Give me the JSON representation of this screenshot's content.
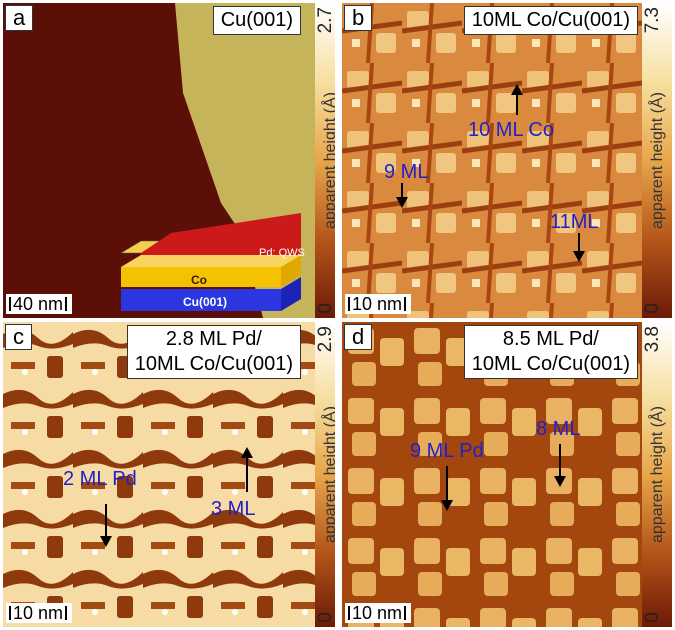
{
  "panels": {
    "a": {
      "letter": "a",
      "title": "Cu(001)",
      "scalebar": "40 nm",
      "colorbar": {
        "max": "2.7",
        "min": "0",
        "label": "apparent height (Å)"
      },
      "schematic": {
        "top_layer": "Pd: QWS",
        "middle_layer": "Co",
        "bottom_layer": "Cu(001)"
      }
    },
    "b": {
      "letter": "b",
      "title": "10ML Co/Cu(001)",
      "scalebar": "10 nm",
      "colorbar": {
        "max": "7.3",
        "min": "0",
        "label": "apparent height (Å)"
      },
      "annotations": [
        "10 ML Co",
        "9 ML",
        "11ML"
      ]
    },
    "c": {
      "letter": "c",
      "title_line1": "2.8 ML Pd/",
      "title_line2": "10ML Co/Cu(001)",
      "scalebar": "10 nm",
      "colorbar": {
        "max": "2.9",
        "min": "0",
        "label": "apparent height (Å)"
      },
      "annotations": [
        "2 ML Pd",
        "3 ML"
      ]
    },
    "d": {
      "letter": "d",
      "title_line1": "8.5 ML Pd/",
      "title_line2": "10ML Co/Cu(001)",
      "scalebar": "10 nm",
      "colorbar": {
        "max": "3.8",
        "min": "0",
        "label": "apparent height (Å)"
      },
      "annotations": [
        "9 ML Pd",
        "8 ML"
      ]
    }
  },
  "colors": {
    "colorbar_top": "#ffffff",
    "colorbar_mid": "#e7a64a",
    "colorbar_bottom": "#6b1a05",
    "annotation": "#2121c8"
  }
}
